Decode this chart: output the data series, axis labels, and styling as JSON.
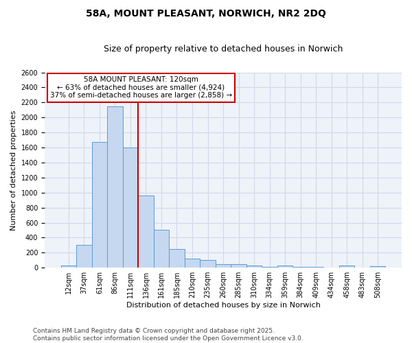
{
  "title": "58A, MOUNT PLEASANT, NORWICH, NR2 2DQ",
  "subtitle": "Size of property relative to detached houses in Norwich",
  "xlabel": "Distribution of detached houses by size in Norwich",
  "ylabel": "Number of detached properties",
  "categories": [
    "12sqm",
    "37sqm",
    "61sqm",
    "86sqm",
    "111sqm",
    "136sqm",
    "161sqm",
    "185sqm",
    "210sqm",
    "235sqm",
    "260sqm",
    "285sqm",
    "310sqm",
    "334sqm",
    "359sqm",
    "384sqm",
    "409sqm",
    "434sqm",
    "458sqm",
    "483sqm",
    "508sqm"
  ],
  "values": [
    25,
    300,
    1675,
    2150,
    1600,
    960,
    505,
    248,
    120,
    100,
    50,
    50,
    30,
    15,
    30,
    15,
    15,
    0,
    30,
    0,
    20
  ],
  "bar_color": "#c5d8f0",
  "bar_edge_color": "#5b9bd5",
  "property_bin_index": 4,
  "annotation_title": "58A MOUNT PLEASANT: 120sqm",
  "annotation_line1": "← 63% of detached houses are smaller (4,924)",
  "annotation_line2": "37% of semi-detached houses are larger (2,858) →",
  "annotation_box_color": "#ffffff",
  "annotation_box_edge_color": "#cc0000",
  "red_line_color": "#cc0000",
  "ylim": [
    0,
    2600
  ],
  "yticks": [
    0,
    200,
    400,
    600,
    800,
    1000,
    1200,
    1400,
    1600,
    1800,
    2000,
    2200,
    2400,
    2600
  ],
  "grid_color": "#d0d8e8",
  "bg_color": "#eef2f9",
  "footer_line1": "Contains HM Land Registry data © Crown copyright and database right 2025.",
  "footer_line2": "Contains public sector information licensed under the Open Government Licence v3.0.",
  "title_fontsize": 10,
  "subtitle_fontsize": 9,
  "xlabel_fontsize": 8,
  "ylabel_fontsize": 8,
  "tick_fontsize": 7,
  "footer_fontsize": 6.5,
  "annotation_fontsize": 7.5
}
